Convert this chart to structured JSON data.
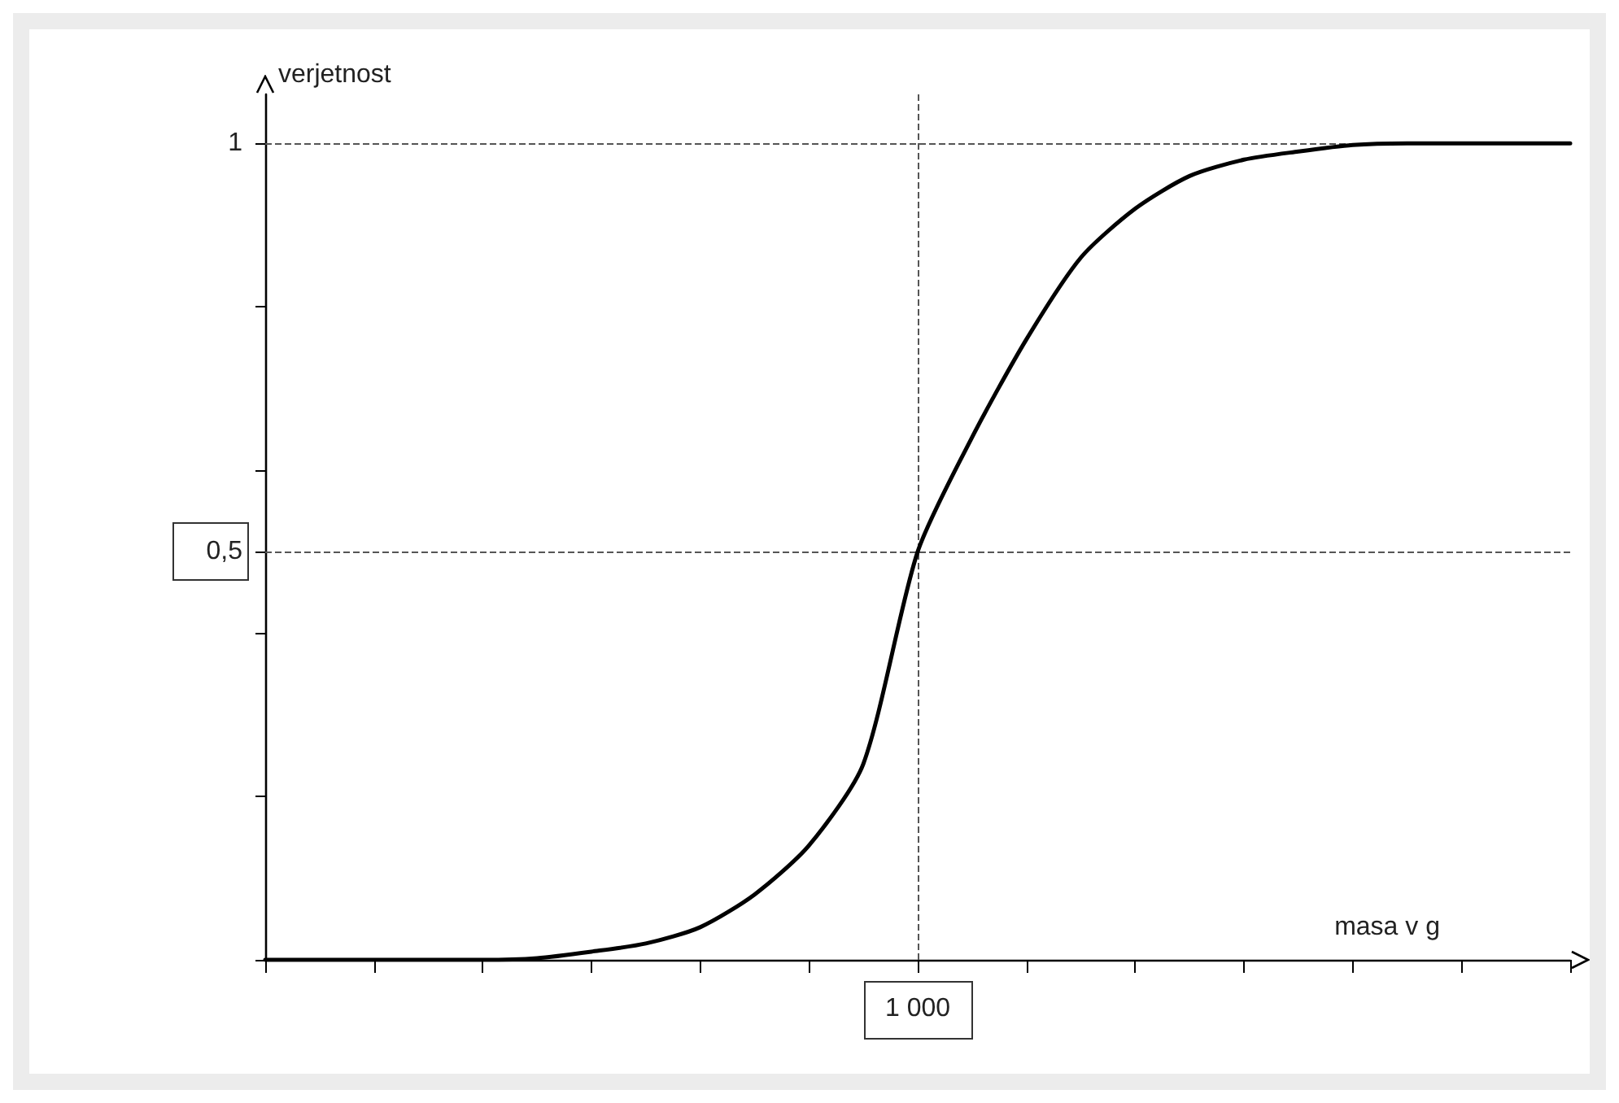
{
  "chart_data": {
    "type": "line",
    "xlabel": "masa v g",
    "ylabel": "verjetnost",
    "categories": [
      null,
      null,
      null,
      null,
      null,
      null,
      null,
      null,
      null,
      null,
      null,
      null,
      "1 000",
      null,
      null,
      null,
      null,
      null,
      null,
      null,
      null,
      null,
      null,
      null,
      null
    ],
    "series": [
      {
        "color": "#000000",
        "values": [
          0,
          0,
          0,
          0,
          0,
          0.002,
          0.01,
          0.02,
          0.04,
          0.08,
          0.14,
          0.24,
          0.5,
          0.64,
          0.76,
          0.86,
          0.92,
          0.96,
          0.98,
          0.99,
          0.998,
          1,
          1,
          1,
          1
        ]
      }
    ],
    "ylim": [
      0,
      1.06
    ],
    "yticks": [
      {
        "value": 0,
        "label": null
      },
      {
        "value": 0.2,
        "label": null
      },
      {
        "value": 0.4,
        "label": null
      },
      {
        "value": 0.5,
        "label": "0,5"
      },
      {
        "value": 0.6,
        "label": null
      },
      {
        "value": 0.8,
        "label": null
      },
      {
        "value": 1,
        "label": "1"
      }
    ],
    "ref_lines": [
      {
        "axis": "x",
        "value": "1 000",
        "line_style": "dashed",
        "color": "#555555"
      },
      {
        "axis": "y",
        "value": 0.5,
        "line_style": "dashed",
        "color": "#555555"
      },
      {
        "axis": "y",
        "value": 1,
        "line_style": "dashed",
        "color": "#555555"
      }
    ],
    "grid": false,
    "marker": "none",
    "line_style": "solid"
  }
}
